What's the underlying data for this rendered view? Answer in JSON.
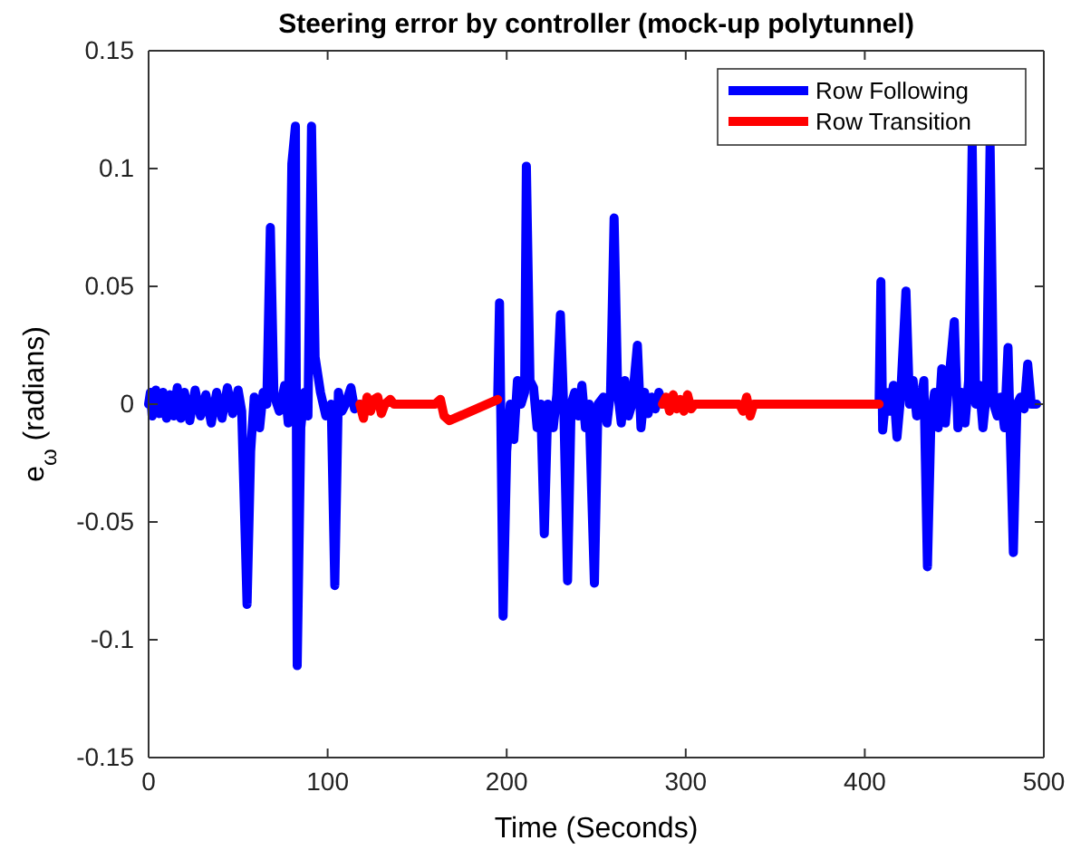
{
  "chart_data": {
    "type": "line",
    "title": "Steering error by controller (mock-up polytunnel)",
    "xlabel": "Time (Seconds)",
    "ylabel": "e$_{ω}$ (radians)",
    "xlim": [
      0,
      500
    ],
    "xticks": [
      0,
      100,
      200,
      300,
      400,
      500
    ],
    "ylim": [
      -0.15,
      0.15
    ],
    "yticks": [
      -0.15,
      -0.1,
      -0.05,
      0,
      0.05,
      0.1,
      0.15
    ],
    "legend": "top right",
    "series": [
      {
        "name": "Row Following",
        "color": "#0000ff",
        "x": [
          0,
          1,
          2,
          4,
          6,
          8,
          10,
          12,
          14,
          16,
          18,
          20,
          23,
          26,
          29,
          32,
          35,
          38,
          41,
          44,
          47,
          50,
          52,
          55,
          57,
          59,
          62,
          64,
          66,
          68,
          70,
          73,
          76,
          78,
          80,
          82,
          83,
          85,
          87,
          89,
          91,
          93,
          96,
          99,
          102,
          104,
          106,
          108,
          110,
          113,
          115,
          118,
          150,
          195,
          196,
          198,
          200,
          202,
          204,
          206,
          208,
          210,
          211,
          213,
          215,
          217,
          219,
          221,
          223,
          226,
          228,
          230,
          232,
          234,
          236,
          238,
          240,
          242,
          244,
          246,
          249,
          251,
          254,
          256,
          258,
          260,
          262,
          264,
          266,
          268,
          270,
          273,
          275,
          277,
          279,
          281,
          283,
          285,
          287,
          350,
          408,
          409,
          410,
          412,
          414,
          416,
          418,
          420,
          423,
          425,
          427,
          429,
          431,
          433,
          435,
          437,
          439,
          441,
          443,
          445,
          447,
          450,
          452,
          454,
          456,
          458,
          460,
          462,
          464,
          466,
          468,
          470,
          472,
          474,
          476,
          478,
          480,
          483,
          485,
          487,
          489,
          491,
          493,
          496
        ],
        "values": [
          0,
          0.005,
          -0.005,
          0.006,
          -0.004,
          0.005,
          -0.006,
          0.004,
          -0.005,
          0.007,
          -0.006,
          0.005,
          -0.007,
          0.006,
          -0.005,
          0.004,
          -0.008,
          0.005,
          -0.006,
          0.007,
          -0.004,
          0.006,
          -0.003,
          -0.085,
          -0.02,
          0.003,
          -0.01,
          0.005,
          0,
          0.075,
          0.004,
          -0.003,
          0.008,
          -0.008,
          0.102,
          0.118,
          -0.111,
          -0.01,
          0.005,
          -0.005,
          0.118,
          0.02,
          0.005,
          -0.005,
          0,
          -0.077,
          0.005,
          -0.003,
          0,
          0.007,
          -0.002,
          0,
          null,
          0.003,
          0.043,
          -0.09,
          -0.02,
          0,
          -0.015,
          0.01,
          0,
          0.005,
          0.101,
          0.01,
          0.007,
          -0.01,
          0,
          -0.055,
          0,
          -0.01,
          0.004,
          0.038,
          -0.005,
          -0.075,
          0,
          0.005,
          -0.005,
          0.008,
          -0.01,
          0,
          -0.076,
          0,
          0.003,
          -0.008,
          0.005,
          0.079,
          0.005,
          -0.008,
          0.01,
          -0.005,
          0,
          0.025,
          -0.01,
          0.005,
          -0.004,
          0.003,
          -0.002,
          0.005,
          0,
          null,
          0,
          0.052,
          -0.011,
          0.005,
          -0.003,
          0.008,
          -0.014,
          0.003,
          0.048,
          0,
          0.01,
          -0.005,
          0,
          0.01,
          -0.069,
          -0.005,
          0.005,
          -0.01,
          0.015,
          -0.008,
          0.01,
          0.035,
          -0.01,
          0.005,
          -0.008,
          0.01,
          0.11,
          0,
          0.008,
          -0.01,
          0.005,
          0.11,
          0,
          -0.005,
          0.003,
          -0.01,
          0.024,
          -0.063,
          0,
          0.003,
          -0.002,
          0.017,
          0,
          0
        ]
      },
      {
        "name": "Row Transition",
        "color": "#ff0000",
        "x": [
          118,
          120,
          122,
          124,
          126,
          128,
          130,
          132,
          135,
          137,
          160,
          163,
          165,
          168,
          195,
          250,
          287,
          289,
          291,
          293,
          295,
          297,
          299,
          301,
          303,
          305,
          330,
          332,
          334,
          336,
          338,
          408
        ],
        "values": [
          0,
          -0.006,
          0.003,
          -0.003,
          0.002,
          0.003,
          -0.004,
          0,
          0.002,
          0,
          0,
          0.002,
          -0.005,
          -0.007,
          0.002,
          null,
          0,
          0.003,
          -0.003,
          0.004,
          -0.002,
          0.002,
          -0.003,
          0.004,
          -0.002,
          0,
          0,
          -0.003,
          0.003,
          -0.005,
          0,
          0
        ]
      }
    ]
  }
}
